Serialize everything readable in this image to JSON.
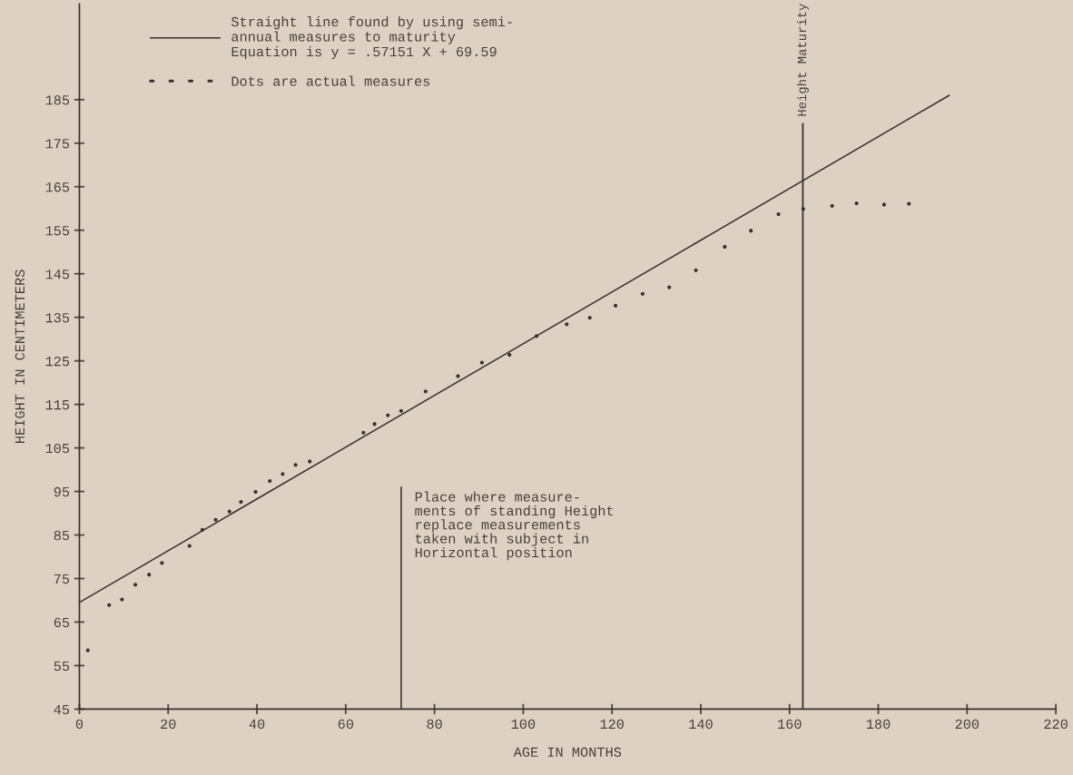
{
  "chart_data": {
    "type": "scatter",
    "xlabel": "AGE IN MONTHS",
    "ylabel": "HEIGHT IN CENTIMETERS",
    "xlim": [
      0,
      220
    ],
    "xticks": [
      0,
      20,
      40,
      60,
      80,
      100,
      120,
      140,
      160,
      180,
      200,
      220
    ],
    "ylim": [
      45,
      207
    ],
    "yticks": [
      45,
      55,
      65,
      75,
      85,
      95,
      105,
      115,
      125,
      135,
      145,
      155,
      165,
      175,
      185
    ],
    "grid": false,
    "legend": "top left",
    "series": [
      {
        "type": "line",
        "name": "Straight line found by using semi-\nannual measures to maturity\nEquation is y = .57151 X + 69.59",
        "color": "#3a302c",
        "x": [
          0,
          196
        ],
        "values": [
          69.5,
          186
        ]
      },
      {
        "name": "Dots are actual measures",
        "color": "#3a302c",
        "x": [
          1.9,
          6.7,
          9.6,
          12.6,
          15.7,
          18.6,
          24.8,
          27.7,
          30.7,
          33.8,
          36.4,
          39.7,
          42.9,
          45.8,
          48.7,
          51.9,
          64,
          66.5,
          69.5,
          72.5,
          78,
          85.3,
          90.7,
          96.9,
          103.0,
          109.8,
          115.0,
          120.8,
          126.9,
          132.9,
          138.9,
          145.4,
          151.3,
          157.5,
          163.1,
          169.6,
          175.1,
          181.3,
          186.9
        ],
        "values": [
          58.5,
          68.9,
          70.2,
          73.6,
          75.9,
          78.6,
          82.5,
          86.2,
          88.5,
          90.4,
          92.6,
          94.9,
          97.4,
          99.0,
          101.1,
          101.9,
          108.5,
          110.5,
          112.5,
          113.5,
          118,
          121.5,
          124.6,
          126.4,
          130.7,
          133.4,
          134.9,
          137.7,
          140.4,
          141.9,
          145.8,
          151.2,
          154.9,
          158.7,
          159.9,
          160.6,
          161.2,
          160.9,
          161.1
        ]
      },
      {
        "type": "line",
        "color": "#3a302c",
        "x": [
          72.5,
          72.5
        ],
        "values": [
          45,
          96
        ]
      }
    ],
    "ref_lines": [
      {
        "axis": "x",
        "value": 163,
        "label": "Height Maturity",
        "color": "#3a302c"
      }
    ],
    "annotations": [
      {
        "text": "Place where measure-\nments of standing Height\nreplace measurements\ntaken with subject in\nHorizontal position",
        "x": 72.5,
        "y": 95
      }
    ]
  }
}
